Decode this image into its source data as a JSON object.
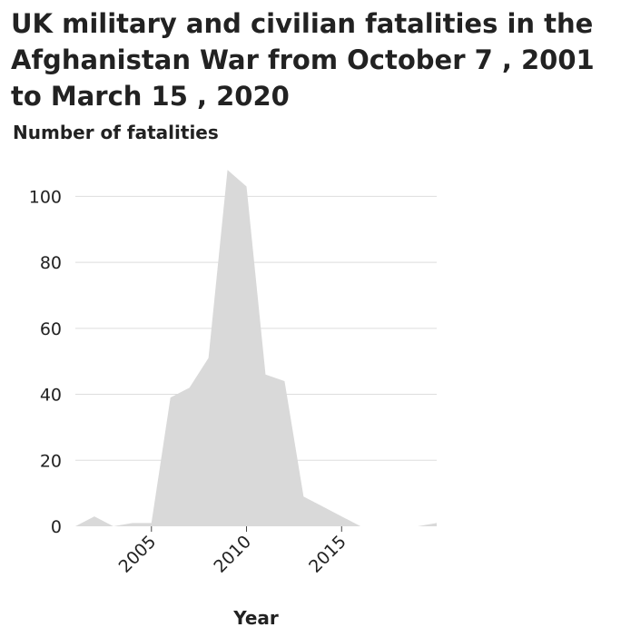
{
  "chart_data": {
    "type": "area",
    "title": "UK military and civilian fatalities in the Afghanistan War from October 7 , 2001 to March 15 , 2020",
    "xlabel": "Year",
    "ylabel": "Number of fatalities",
    "x": [
      2001,
      2002,
      2003,
      2004,
      2005,
      2006,
      2007,
      2008,
      2009,
      2010,
      2011,
      2012,
      2013,
      2014,
      2015,
      2016,
      2017,
      2018,
      2019,
      2020
    ],
    "values": [
      0,
      3,
      0,
      1,
      1,
      39,
      42,
      51,
      108,
      103,
      46,
      44,
      9,
      6,
      3,
      0,
      0,
      0,
      0,
      1
    ],
    "xlim": [
      2001,
      2020
    ],
    "ylim": [
      0,
      110
    ],
    "x_ticks": [
      2005,
      2010,
      2015
    ],
    "y_ticks": [
      0,
      20,
      40,
      60,
      80,
      100
    ],
    "grid": "horizontal",
    "fill_color": "#d9d9d9",
    "grid_color": "#dddddd"
  }
}
